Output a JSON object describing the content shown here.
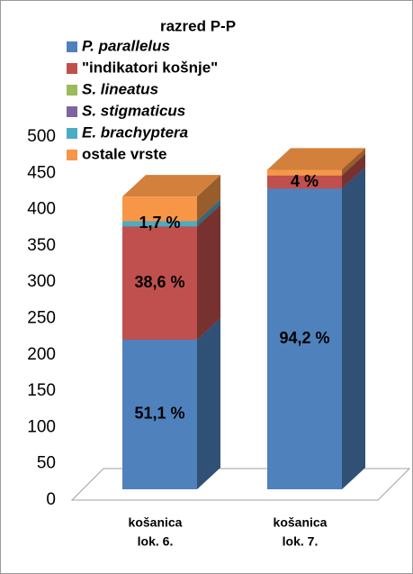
{
  "chart_data": {
    "type": "bar3d_stacked",
    "title": "razred P-P",
    "categories": [
      [
        "košanica",
        "lok. 6."
      ],
      [
        "košanica",
        "lok. 7."
      ]
    ],
    "series": [
      {
        "name": "P. parallelus",
        "color": "#4F81BD",
        "italic": true,
        "values": [
          206,
          414
        ],
        "data_labels": [
          "51,1 %",
          "94,2 %"
        ]
      },
      {
        "name": "\"indikatori košnje\"",
        "color": "#C0504D",
        "italic": false,
        "values": [
          156,
          18
        ],
        "data_labels": [
          "38,6 %",
          "4 %"
        ]
      },
      {
        "name": "S. lineatus",
        "color": "#9BBB59",
        "italic": true,
        "values": [
          0,
          0
        ],
        "data_labels": [
          null,
          null
        ]
      },
      {
        "name": "S. stigmaticus",
        "color": "#8064A2",
        "italic": true,
        "values": [
          0,
          0
        ],
        "data_labels": [
          null,
          null
        ]
      },
      {
        "name": "E. brachyptera",
        "color": "#4BACC6",
        "italic": true,
        "values": [
          7,
          0
        ],
        "data_labels": [
          "1,7 %",
          null
        ]
      },
      {
        "name": "ostale vrste",
        "color": "#F79646",
        "italic": false,
        "values": [
          34,
          8
        ],
        "data_labels": [
          null,
          null
        ]
      }
    ],
    "ylim": [
      0,
      500
    ],
    "yticks": [
      0,
      50,
      100,
      150,
      200,
      250,
      300,
      350,
      400,
      450,
      500
    ]
  }
}
